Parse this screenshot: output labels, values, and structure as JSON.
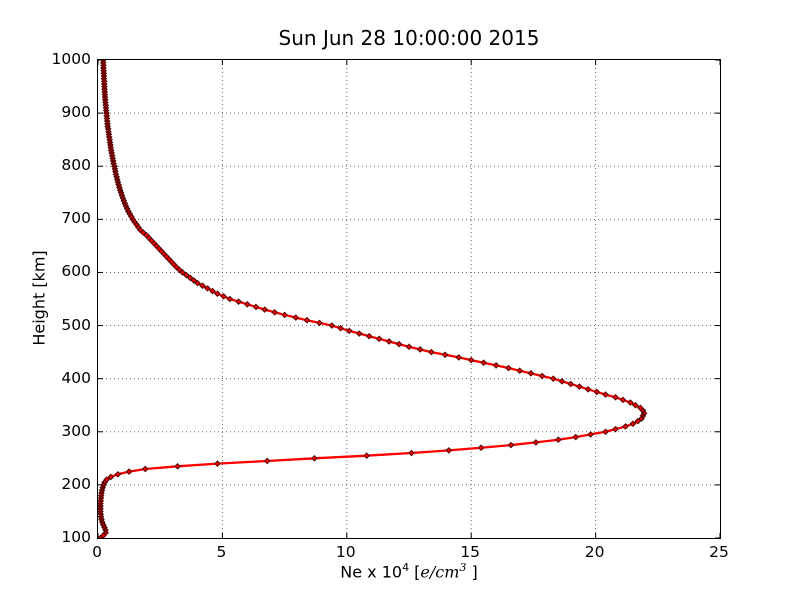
{
  "title": "Sun Jun 28 10:00:00 2015",
  "colors": {
    "background": "#ffffff",
    "axis": "#000000",
    "grid": "#666666",
    "line": "#ff0000",
    "marker_fill": "#ff0000",
    "marker_edge": "#4d0000"
  },
  "axes": {
    "x": {
      "ticks": [
        0,
        5,
        10,
        15,
        20,
        25
      ],
      "min": 0,
      "max": 25,
      "label_parts": {
        "prefix": "Ne x 10",
        "sup1": "4",
        "open_bracket": " [",
        "math": "e/cm",
        "sup2": "3",
        "close_bracket": " ]"
      }
    },
    "y": {
      "label": "Height [km]",
      "ticks": [
        100,
        200,
        300,
        400,
        500,
        600,
        700,
        800,
        900,
        1000
      ],
      "min": 100,
      "max": 1000
    }
  },
  "chart_data": {
    "type": "line",
    "title": "Sun Jun 28 10:00:00 2015",
    "xlabel": "Ne x 10^4 [e/cm^3]",
    "ylabel": "Height [km]",
    "xlim": [
      0,
      25
    ],
    "ylim": [
      100,
      1000
    ],
    "grid": true,
    "grid_style": "dotted",
    "legend": "none",
    "line_color": "#ff0000",
    "marker": "diamond",
    "series_description": "Ionospheric electron density profile: Ne (x 10^4 e/cm^3) versus height (km); F-layer peak Ne = 21.95 at ~335 km, E-layer bump ~0.3 near 110 km",
    "peak": {
      "height_km": 335,
      "ne_1e4_per_cm3": 21.95
    },
    "height_km_start": 100,
    "height_km_step": 5,
    "ne_1e4_per_cm3": [
      0.1,
      0.22,
      0.31,
      0.3,
      0.26,
      0.21,
      0.17,
      0.14,
      0.12,
      0.11,
      0.1,
      0.1,
      0.1,
      0.1,
      0.11,
      0.12,
      0.13,
      0.14,
      0.16,
      0.19,
      0.22,
      0.27,
      0.35,
      0.52,
      0.8,
      1.25,
      1.9,
      3.2,
      4.8,
      6.8,
      8.7,
      10.8,
      12.6,
      14.1,
      15.4,
      16.6,
      17.6,
      18.5,
      19.2,
      19.8,
      20.4,
      20.8,
      21.2,
      21.5,
      21.7,
      21.85,
      21.9,
      21.95,
      21.9,
      21.8,
      21.6,
      21.4,
      21.1,
      20.8,
      20.4,
      20.05,
      19.7,
      19.35,
      19.0,
      18.65,
      18.3,
      17.85,
      17.4,
      16.95,
      16.5,
      16.0,
      15.5,
      15.0,
      14.5,
      13.95,
      13.4,
      12.95,
      12.5,
      12.1,
      11.7,
      11.3,
      10.9,
      10.5,
      10.1,
      9.75,
      9.4,
      8.9,
      8.4,
      7.95,
      7.5,
      7.1,
      6.7,
      6.35,
      6.0,
      5.65,
      5.3,
      5.05,
      4.8,
      4.6,
      4.4,
      4.2,
      4.0,
      3.85,
      3.7,
      3.55,
      3.4,
      3.27,
      3.15,
      3.05,
      2.95,
      2.85,
      2.75,
      2.65,
      2.55,
      2.45,
      2.35,
      2.25,
      2.15,
      2.05,
      1.95,
      1.82,
      1.7,
      1.62,
      1.55,
      1.47,
      1.4,
      1.34,
      1.28,
      1.22,
      1.17,
      1.12,
      1.08,
      1.04,
      1.0,
      0.96,
      0.93,
      0.89,
      0.86,
      0.83,
      0.8,
      0.77,
      0.75,
      0.72,
      0.7,
      0.68,
      0.66,
      0.63,
      0.61,
      0.59,
      0.57,
      0.55,
      0.53,
      0.51,
      0.5,
      0.48,
      0.47,
      0.45,
      0.44,
      0.42,
      0.41,
      0.39,
      0.38,
      0.37,
      0.36,
      0.35,
      0.34,
      0.33,
      0.32,
      0.31,
      0.3,
      0.29,
      0.28,
      0.28,
      0.27,
      0.26,
      0.26,
      0.25,
      0.25,
      0.24,
      0.24,
      0.23,
      0.23,
      0.22,
      0.22,
      0.21,
      0.21
    ]
  }
}
